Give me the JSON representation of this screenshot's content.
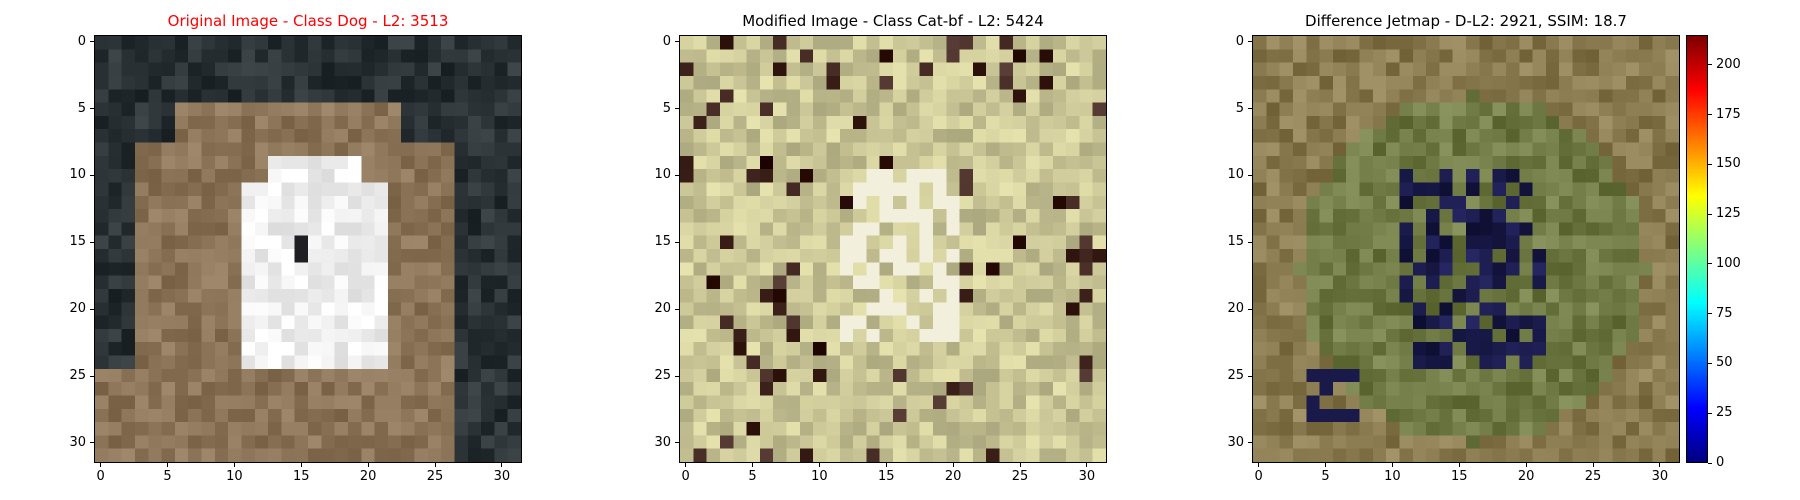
{
  "panels": [
    {
      "id": "original",
      "title": "Original Image - Class Dog - L2: 3513",
      "title_color": "#ff0000",
      "x_ticks": [
        "0",
        "5",
        "10",
        "15",
        "20",
        "25",
        "30"
      ],
      "y_ticks": [
        "0",
        "5",
        "10",
        "15",
        "20",
        "25",
        "30"
      ],
      "image_description_colors": {
        "background": "#2a3236",
        "ground": "#8c7458",
        "dog": "#f0f0f0"
      }
    },
    {
      "id": "modified",
      "title": "Modified Image - Class Cat-bf - L2: 5424",
      "title_color": "#000000",
      "x_ticks": [
        "0",
        "5",
        "10",
        "15",
        "20",
        "25",
        "30"
      ],
      "y_ticks": [
        "0",
        "5",
        "10",
        "15",
        "20",
        "25",
        "30"
      ],
      "image_description_colors": {
        "background": "#c9c596",
        "dark": "#3a2018",
        "light": "#f2f0dc"
      }
    },
    {
      "id": "difference",
      "title": "Difference Jetmap - D-L2: 2921, SSIM: 18.7",
      "title_color": "#000000",
      "x_ticks": [
        "0",
        "5",
        "10",
        "15",
        "20",
        "25",
        "30"
      ],
      "y_ticks": [
        "0",
        "5",
        "10",
        "15",
        "20",
        "25",
        "30"
      ],
      "image_description_colors": {
        "background": "#6f7a44",
        "center": "#1a1a4a",
        "edge": "#8a7a50"
      }
    }
  ],
  "colorbar": {
    "colormap": "jet",
    "range": [
      0,
      215
    ],
    "ticks": [
      "0",
      "25",
      "50",
      "75",
      "100",
      "125",
      "150",
      "175",
      "200"
    ]
  }
}
